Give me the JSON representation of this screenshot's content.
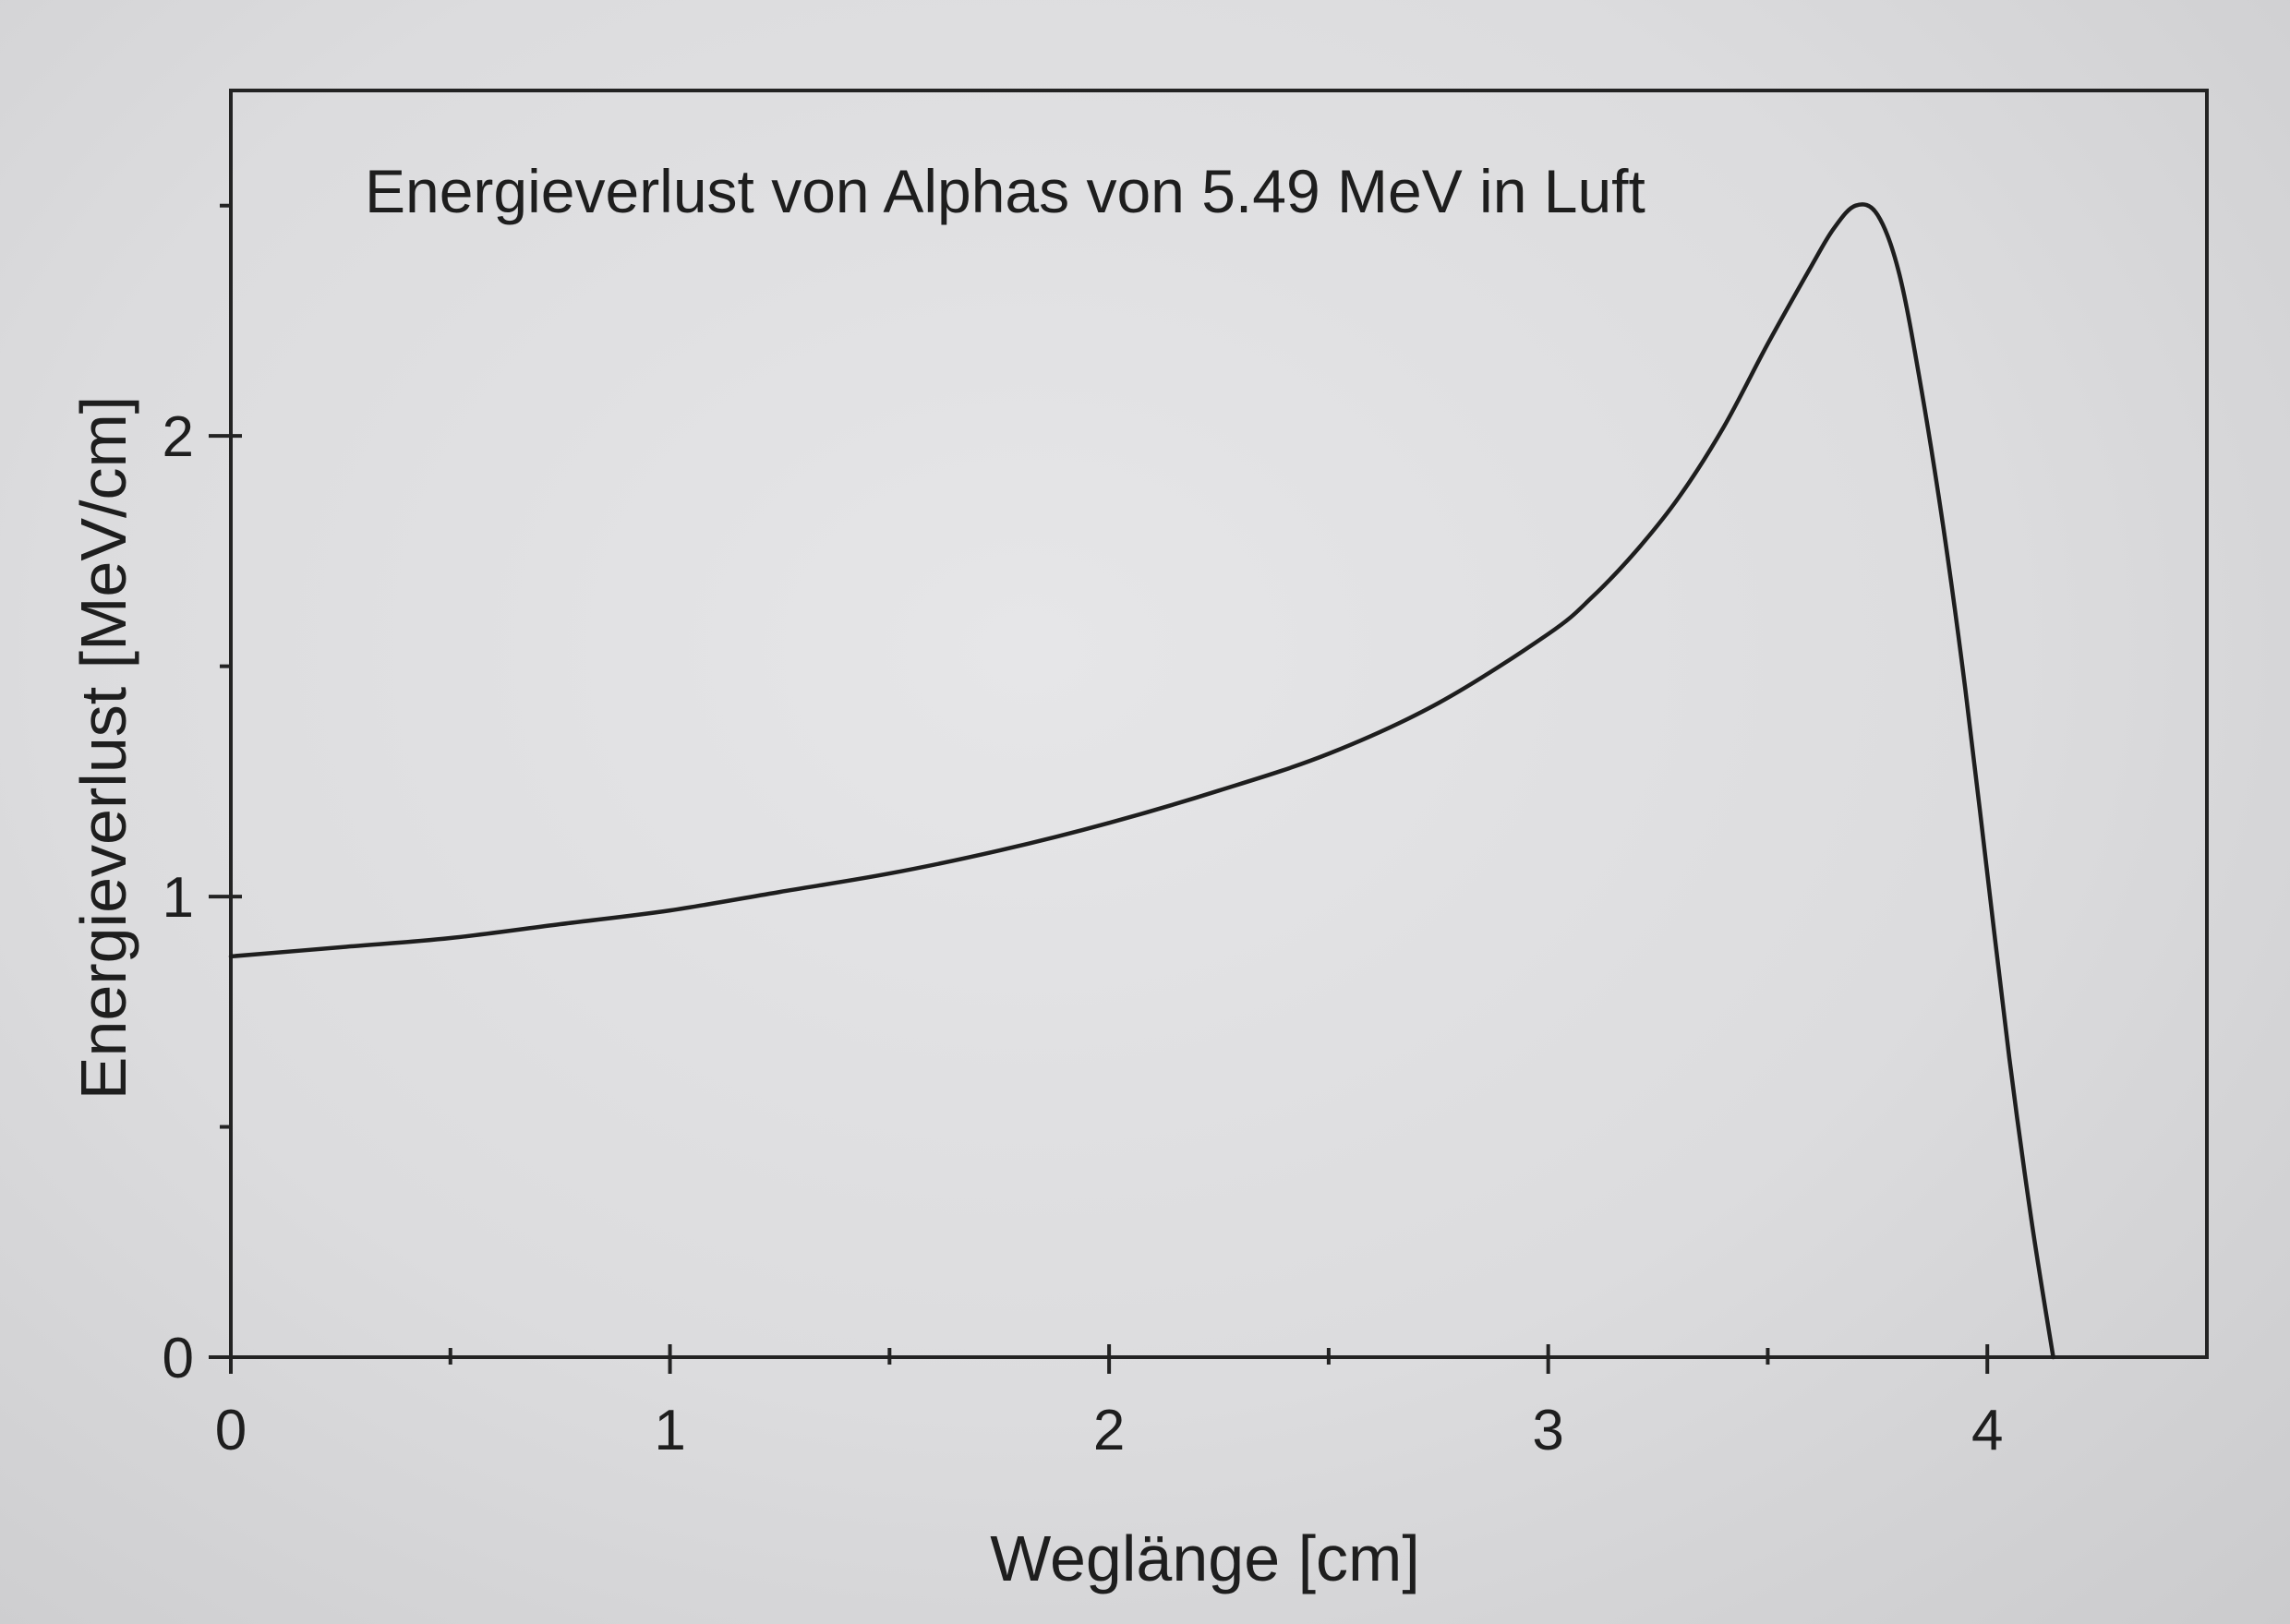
{
  "chart_data": {
    "type": "line",
    "title": "Energieverlust von Alphas von 5.49 MeV in Luft",
    "xlabel": "Weglänge [cm]",
    "ylabel": "Energieverlust [MeV/cm]",
    "xlim": [
      0,
      4.5
    ],
    "ylim": [
      0,
      2.75
    ],
    "x_ticks": [
      {
        "value": 0,
        "label": "0"
      },
      {
        "value": 1,
        "label": "1"
      },
      {
        "value": 2,
        "label": "2"
      },
      {
        "value": 3,
        "label": "3"
      },
      {
        "value": 4,
        "label": "4"
      }
    ],
    "x_minor_ticks": [
      0.5,
      1.5,
      2.5,
      3.5
    ],
    "y_ticks": [
      {
        "value": 0,
        "label": "0"
      },
      {
        "value": 1,
        "label": "1"
      },
      {
        "value": 2,
        "label": "2"
      }
    ],
    "y_minor_ticks": [
      0.5,
      1.5,
      2.5
    ],
    "grid": false,
    "legend": "none",
    "series": [
      {
        "color": "#1e1e1e",
        "x": [
          0,
          0.25,
          0.5,
          0.75,
          1.0,
          1.25,
          1.5,
          1.75,
          2.0,
          2.25,
          2.5,
          2.75,
          3.0,
          3.1,
          3.2,
          3.3,
          3.4,
          3.5,
          3.6,
          3.65,
          3.7,
          3.75,
          3.8,
          3.85,
          3.9,
          3.95,
          4.0,
          4.05,
          4.1,
          4.15
        ],
        "y": [
          0.87,
          0.89,
          0.91,
          0.94,
          0.97,
          1.01,
          1.05,
          1.1,
          1.16,
          1.23,
          1.31,
          1.42,
          1.57,
          1.65,
          1.75,
          1.87,
          2.02,
          2.2,
          2.37,
          2.45,
          2.5,
          2.48,
          2.35,
          2.1,
          1.8,
          1.45,
          1.05,
          0.65,
          0.3,
          0.0
        ]
      }
    ]
  }
}
